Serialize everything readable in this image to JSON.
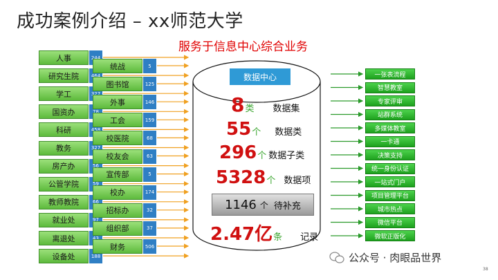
{
  "title": "成功案例介绍 – xx师范大学",
  "subtitle": "服务于信息中心综合业务",
  "sources_col1": [
    {
      "label": "人事",
      "count": "244"
    },
    {
      "label": "研究生院",
      "count": "464"
    },
    {
      "label": "学工",
      "count": "327"
    },
    {
      "label": "国资办",
      "count": "78"
    },
    {
      "label": "科研",
      "count": "458"
    },
    {
      "label": "教务",
      "count": "327"
    },
    {
      "label": "房产办",
      "count": "56"
    },
    {
      "label": "公管学院",
      "count": "59"
    },
    {
      "label": "教师教院",
      "count": "66"
    },
    {
      "label": "就业处",
      "count": "97"
    },
    {
      "label": "离退处",
      "count": "43"
    },
    {
      "label": "设备处",
      "count": "188"
    }
  ],
  "sources_col2": [
    {
      "label": "统战",
      "count": "5"
    },
    {
      "label": "图书馆",
      "count": "125"
    },
    {
      "label": "外事",
      "count": "146"
    },
    {
      "label": "工会",
      "count": "159"
    },
    {
      "label": "校医院",
      "count": "68"
    },
    {
      "label": "校友会",
      "count": "63"
    },
    {
      "label": "宣传部",
      "count": "5"
    },
    {
      "label": "校办",
      "count": "174"
    },
    {
      "label": "招标办",
      "count": "32"
    },
    {
      "label": "组织部",
      "count": "37"
    },
    {
      "label": "财务",
      "count": "506"
    }
  ],
  "data_center": {
    "label": "数据中心",
    "stats": [
      {
        "value": "8",
        "unit": "类",
        "label": "数据集"
      },
      {
        "value": "55",
        "unit": "个",
        "label": "数据类"
      },
      {
        "value": "296",
        "unit": "个",
        "label": "数据子类"
      },
      {
        "value": "5328",
        "unit": "个",
        "label": "数据项"
      },
      {
        "value": "2.47亿",
        "unit": "条",
        "label": "记录"
      }
    ],
    "pending": {
      "value": "1146",
      "unit": "个",
      "label": "待补充"
    }
  },
  "targets": [
    "一张表流程",
    "智慧教室",
    "专家评审",
    "站群系统",
    "多媒体教室",
    "一卡通",
    "决策支持",
    "统一身份认证",
    "一站式门户",
    "项目管理平台",
    "城市热点",
    "微信平台",
    "微软正版化"
  ],
  "watermark": "公众号 · 肉眼品世界",
  "page_number": "38",
  "colors": {
    "title_red": "#e00000",
    "source_green": "#5dba3c",
    "count_blue": "#2f7fc4",
    "target_green": "#1ea11e",
    "arrow_orange": "#f0a020",
    "stat_red": "#d01010"
  }
}
